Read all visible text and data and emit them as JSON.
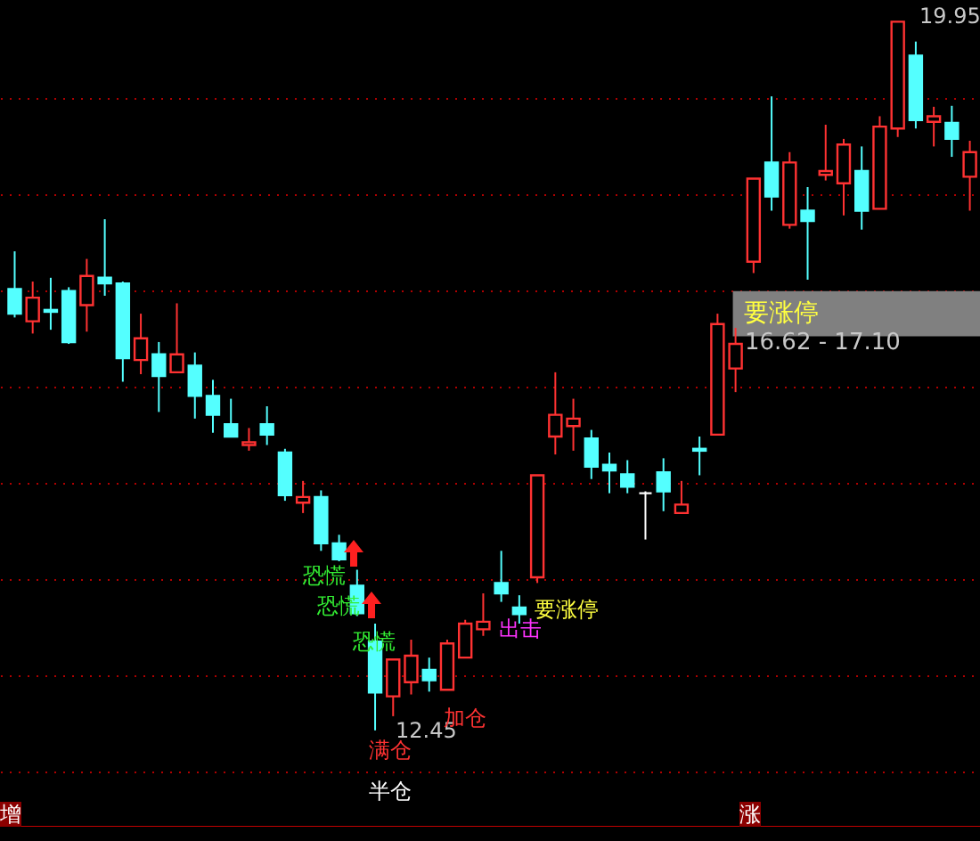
{
  "chart_data": {
    "type": "candlestick",
    "categories": [
      null,
      null,
      null,
      null,
      null,
      null,
      null,
      null,
      null,
      null,
      null,
      null,
      null,
      null,
      null,
      null,
      null,
      null,
      null,
      null,
      null,
      null,
      null,
      null,
      null,
      null,
      null,
      null,
      null,
      null,
      null,
      null,
      null,
      null,
      null,
      null,
      null,
      null,
      null,
      null,
      null,
      null,
      null,
      null,
      null,
      null,
      null,
      null,
      null,
      null,
      null,
      null,
      null,
      null
    ],
    "ohlc": [
      [
        17.12,
        17.52,
        16.82,
        16.86
      ],
      [
        16.78,
        17.2,
        16.65,
        17.03
      ],
      [
        16.9,
        17.24,
        16.69,
        16.88
      ],
      [
        17.1,
        17.14,
        16.54,
        16.56
      ],
      [
        16.95,
        17.44,
        16.67,
        17.26
      ],
      [
        17.24,
        17.86,
        17.05,
        17.18
      ],
      [
        17.18,
        17.2,
        16.14,
        16.39
      ],
      [
        16.37,
        16.86,
        16.22,
        16.6
      ],
      [
        16.43,
        16.56,
        15.82,
        16.2
      ],
      [
        16.24,
        16.97,
        16.24,
        16.43
      ],
      [
        16.31,
        16.45,
        15.75,
        15.99
      ],
      [
        15.99,
        16.16,
        15.6,
        15.79
      ],
      [
        15.69,
        15.96,
        15.56,
        15.56
      ],
      [
        15.47,
        15.65,
        15.41,
        15.5
      ],
      [
        15.69,
        15.88,
        15.47,
        15.58
      ],
      [
        15.39,
        15.43,
        14.88,
        14.94
      ],
      [
        14.86,
        15.09,
        14.75,
        14.92
      ],
      [
        14.92,
        14.99,
        14.35,
        14.43
      ],
      [
        14.43,
        14.52,
        14.24,
        14.26
      ],
      [
        13.98,
        14.15,
        13.66,
        13.69
      ],
      [
        13.39,
        13.58,
        12.45,
        12.85
      ],
      [
        12.81,
        13.2,
        12.6,
        13.2
      ],
      [
        12.96,
        13.41,
        12.83,
        13.24
      ],
      [
        13.09,
        13.22,
        12.86,
        12.98
      ],
      [
        12.88,
        13.41,
        12.88,
        13.37
      ],
      [
        13.22,
        13.62,
        13.22,
        13.58
      ],
      [
        13.52,
        13.9,
        13.45,
        13.6
      ],
      [
        14.01,
        14.35,
        13.81,
        13.9
      ],
      [
        13.75,
        13.88,
        13.58,
        13.68
      ],
      [
        14.07,
        15.15,
        14.01,
        15.15
      ],
      [
        15.56,
        16.24,
        15.37,
        15.79
      ],
      [
        15.67,
        15.96,
        15.41,
        15.75
      ],
      [
        15.54,
        15.63,
        15.11,
        15.24
      ],
      [
        15.26,
        15.39,
        14.96,
        15.2
      ],
      [
        15.16,
        15.31,
        14.96,
        15.03
      ],
      [
        14.96,
        14.98,
        14.47,
        14.96
      ],
      [
        15.18,
        15.33,
        14.77,
        14.98
      ],
      [
        14.75,
        15.09,
        14.75,
        14.84
      ],
      [
        15.43,
        15.56,
        15.15,
        15.41
      ],
      [
        15.58,
        16.86,
        15.58,
        16.75
      ],
      [
        16.28,
        16.71,
        16.03,
        16.54
      ],
      [
        17.41,
        18.29,
        17.29,
        18.29
      ],
      [
        18.46,
        19.16,
        17.95,
        18.1
      ],
      [
        17.8,
        18.57,
        17.76,
        18.46
      ],
      [
        17.95,
        18.2,
        17.22,
        17.84
      ],
      [
        18.33,
        18.86,
        18.27,
        18.37
      ],
      [
        18.24,
        18.71,
        17.9,
        18.65
      ],
      [
        18.37,
        18.63,
        17.75,
        17.95
      ],
      [
        17.97,
        18.95,
        17.97,
        18.84
      ],
      [
        18.82,
        19.95,
        18.73,
        19.95
      ],
      [
        19.59,
        19.74,
        18.82,
        18.91
      ],
      [
        18.89,
        19.05,
        18.63,
        18.95
      ],
      [
        18.88,
        19.06,
        18.52,
        18.71
      ],
      [
        18.31,
        18.69,
        17.95,
        18.57
      ]
    ],
    "colors": [
      "#54ffff",
      "#ff3232",
      "#54ffff",
      "#54ffff",
      "#ff3232",
      "#54ffff",
      "#54ffff",
      "#ff3232",
      "#54ffff",
      "#ff3232",
      "#54ffff",
      "#54ffff",
      "#54ffff",
      "#ff3232",
      "#54ffff",
      "#54ffff",
      "#ff3232",
      "#54ffff",
      "#54ffff",
      "#54ffff",
      "#54ffff",
      "#ff3232",
      "#ff3232",
      "#54ffff",
      "#ff3232",
      "#ff3232",
      "#ff3232",
      "#54ffff",
      "#54ffff",
      "#ff3232",
      "#ff3232",
      "#ff3232",
      "#54ffff",
      "#54ffff",
      "#54ffff",
      "#ffffff",
      "#54ffff",
      "#ff3232",
      "#54ffff",
      "#ff3232",
      "#ff3232",
      "#ff3232",
      "#54ffff",
      "#ff3232",
      "#54ffff",
      "#ff3232",
      "#ff3232",
      "#54ffff",
      "#ff3232",
      "#ff3232",
      "#54ffff",
      "#ff3232",
      "#54ffff",
      "#ff3232"
    ],
    "ylim": [
      11.43,
      20.18
    ],
    "yticks": [
      {
        "value": 12.02,
        "label": null
      },
      {
        "value": 13.03,
        "label": null
      },
      {
        "value": 14.05,
        "label": null
      },
      {
        "value": 15.07,
        "label": null
      },
      {
        "value": 16.09,
        "label": null
      },
      {
        "value": 17.1,
        "label": null
      },
      {
        "value": 18.12,
        "label": null
      },
      {
        "value": 19.14,
        "label": null
      }
    ],
    "grid": "y",
    "bands": [
      {
        "axis": "y",
        "from": 16.62,
        "to": 17.1,
        "label": "要涨停",
        "color": "#808080"
      }
    ],
    "annotations": [
      "19.95",
      "12.45",
      "16.62 - 17.10",
      "恐慌",
      "恐慌",
      "恐慌",
      "满仓",
      "加仓",
      "半仓",
      "出击",
      "要涨停",
      "增",
      "涨"
    ]
  }
}
